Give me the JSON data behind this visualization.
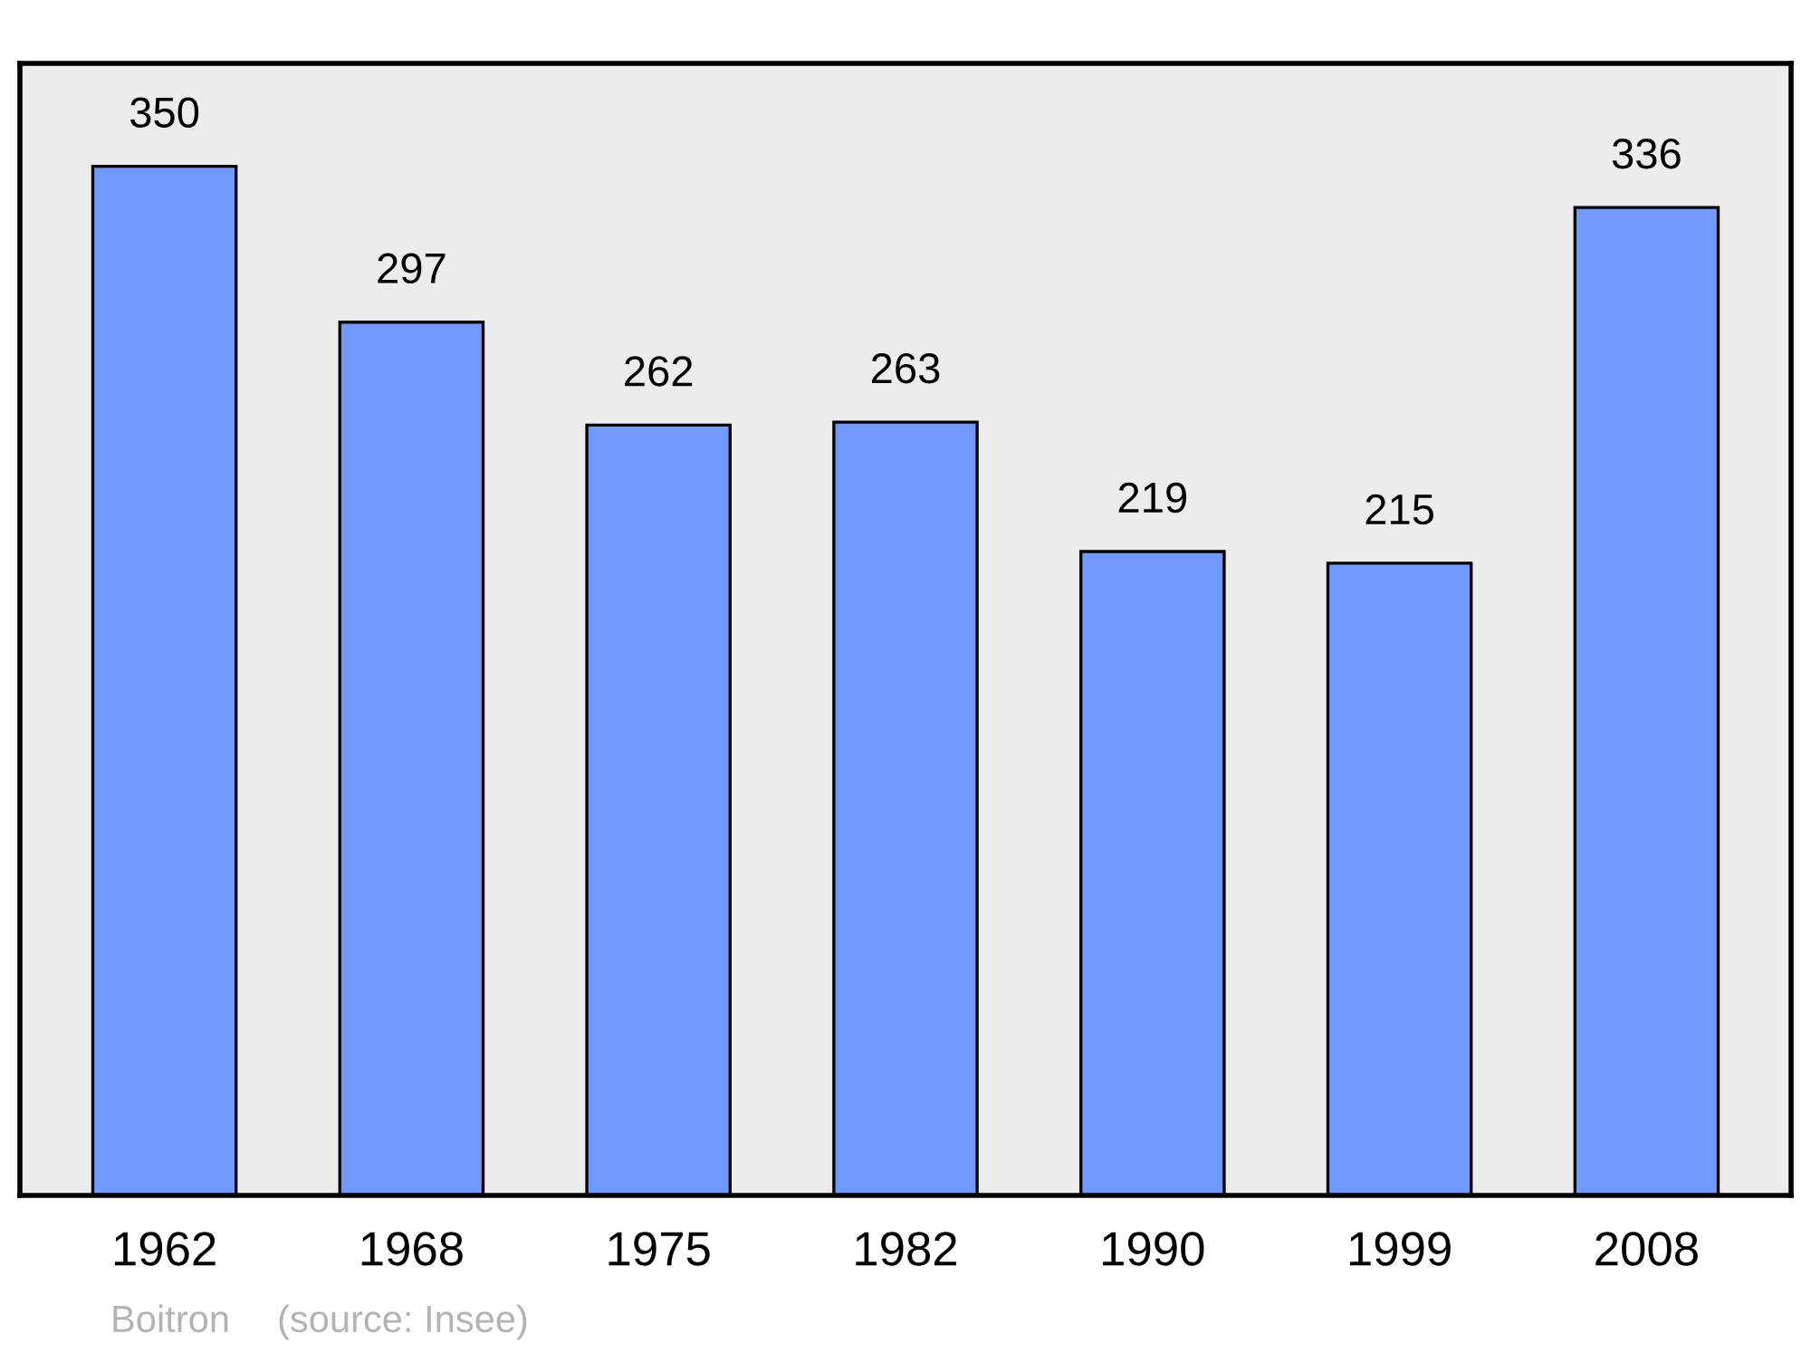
{
  "chart_data": {
    "type": "bar",
    "categories": [
      "1962",
      "1968",
      "1975",
      "1982",
      "1990",
      "1999",
      "2008"
    ],
    "values": [
      350,
      297,
      262,
      263,
      219,
      215,
      336
    ],
    "color": "#7299ff",
    "data_labels": true,
    "tick_labels": "x",
    "grid": false,
    "annotations": [
      "Boitron",
      "(source: Insee)"
    ]
  }
}
